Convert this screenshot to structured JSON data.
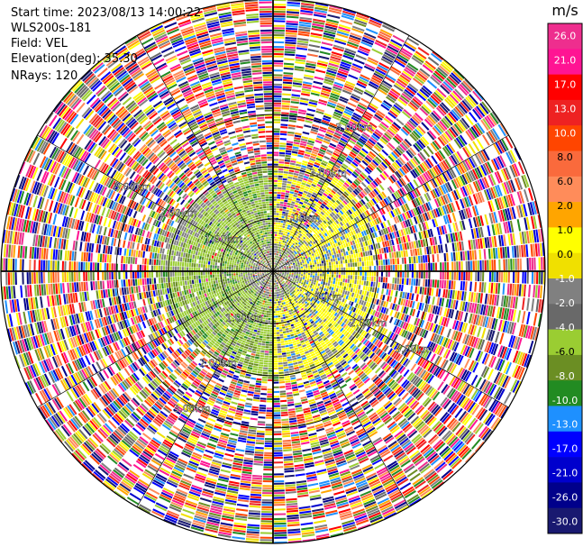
{
  "info": {
    "start_time": "Start time: 2023/08/13 14:00:22",
    "site": "WLS200s-181",
    "field": "Field: VEL",
    "elevation": "Elevation(deg): 35.30",
    "nrays": "NRays: 120"
  },
  "colorbar": {
    "unit": "m/s",
    "ticks": [
      "26.0",
      "21.0",
      "17.0",
      "13.0",
      "10.0",
      "8.0",
      "6.0",
      "2.0",
      "1.0",
      "0.0",
      "-1.0",
      "-2.0",
      "-4.0",
      "-6.0",
      "-8.0",
      "-10.0",
      "-13.0",
      "-17.0",
      "-21.0",
      "-26.0",
      "-30.0"
    ],
    "colors": [
      "#ee2e8e",
      "#ff1493",
      "#ff0000",
      "#ee2222",
      "#ff4500",
      "#fa6a3c",
      "#ff8c5a",
      "#ffa500",
      "#ffff00",
      "#f0e000",
      "#808080",
      "#696969",
      "#9acd32",
      "#6b8e23",
      "#228b22",
      "#1e90ff",
      "#0000ff",
      "#0000cd",
      "#00008b",
      "#191970"
    ]
  },
  "chart_data": {
    "type": "heatmap",
    "title": "",
    "field": "VEL",
    "unit": "m/s",
    "rays": 120,
    "value_range": [
      -30.0,
      26.0
    ],
    "range_rings_km": [
      1.0,
      2.0,
      3.0
    ],
    "ring_labels": [
      "1.00km",
      "2.00km",
      "3.00km"
    ],
    "grid": true,
    "structure": {
      "noise_beyond_km": 2.1,
      "inner_left_quadrant": "green (-1.0 to -4.0 m/s)",
      "inner_right_quadrant": "yellow (1.0 to 2.0 m/s)",
      "near_center": "gray (~0.0 m/s)"
    }
  }
}
